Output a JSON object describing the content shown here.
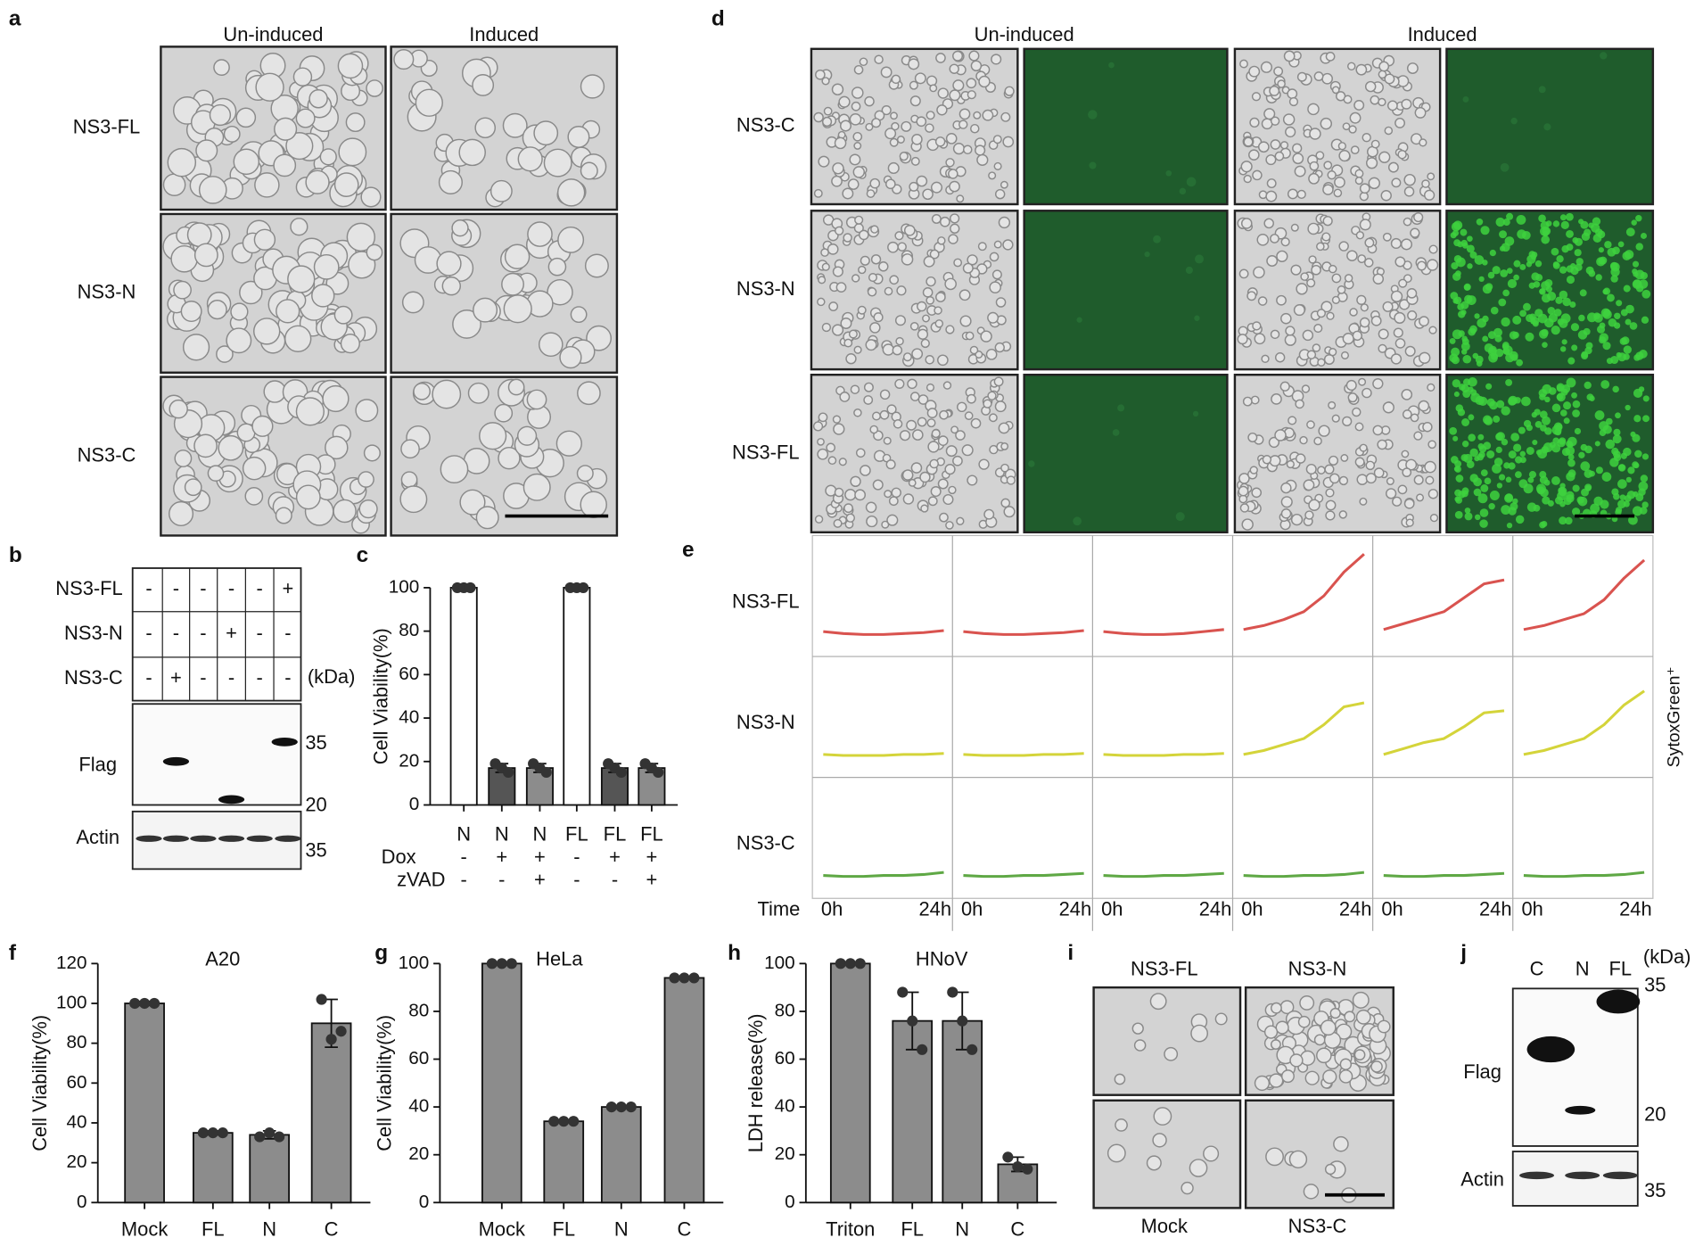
{
  "panel_labels": [
    "a",
    "b",
    "c",
    "d",
    "e",
    "f",
    "g",
    "h",
    "i",
    "j"
  ],
  "panel_a": {
    "columns": [
      "Un-induced",
      "Induced"
    ],
    "rows": [
      "NS3-FL",
      "NS3-N",
      "NS3-C"
    ]
  },
  "panel_b": {
    "rows": [
      {
        "name": "NS3-FL",
        "signs": [
          "-",
          "-",
          "-",
          "-",
          "-",
          "+"
        ]
      },
      {
        "name": "NS3-N",
        "signs": [
          "-",
          "-",
          "-",
          "+",
          "-",
          "-"
        ]
      },
      {
        "name": "NS3-C",
        "signs": [
          "-",
          "+",
          "-",
          "-",
          "-",
          "-"
        ]
      }
    ],
    "unit": "(kDa)",
    "blots": [
      "Flag",
      "Actin"
    ],
    "markers": [
      35,
      20,
      35
    ]
  },
  "panel_d": {
    "columns": [
      "Un-induced",
      "Induced"
    ],
    "rows": [
      "NS3-C",
      "NS3-N",
      "NS3-FL"
    ]
  },
  "panel_i": {
    "labels": [
      "NS3-FL",
      "NS3-N",
      "Mock",
      "NS3-C"
    ]
  },
  "panel_j": {
    "lanes": [
      "C",
      "N",
      "FL"
    ],
    "unit": "(kDa)",
    "blots": [
      "Flag",
      "Actin"
    ],
    "markers": [
      35,
      20,
      35
    ]
  },
  "chart_data": [
    {
      "type": "bar",
      "ylabel": "Cell Viability(%)",
      "categories": [
        "N",
        "N",
        "N",
        "FL",
        "FL",
        "FL"
      ],
      "values": [
        100,
        17,
        17,
        100,
        17,
        17
      ],
      "errors": [
        0,
        2,
        2,
        0,
        2,
        2
      ],
      "points": [
        [
          100,
          100,
          100
        ],
        [
          19,
          17,
          15
        ],
        [
          19,
          17,
          15
        ],
        [
          100,
          100,
          100
        ],
        [
          19,
          17,
          15
        ],
        [
          19,
          17,
          15
        ]
      ],
      "colors": [
        "#ffffff",
        "#555555",
        "#8c8c8c",
        "#ffffff",
        "#555555",
        "#8c8c8c"
      ],
      "treatments": [
        {
          "name": "Dox",
          "signs": [
            "-",
            "+",
            "+",
            "-",
            "+",
            "+"
          ]
        },
        {
          "name": "zVAD",
          "signs": [
            "-",
            "-",
            "+",
            "-",
            "-",
            "+"
          ]
        }
      ],
      "ylim": [
        0,
        100
      ],
      "yticks": [
        0,
        20,
        40,
        60,
        80,
        100
      ]
    },
    {
      "type": "line",
      "xlabel": "Time",
      "ylabel": "SytoxGreen⁺",
      "x": [
        0,
        4,
        8,
        12,
        16,
        20,
        24
      ],
      "xticks": [
        {
          "value": 0,
          "label": "0h"
        },
        {
          "value": 24,
          "label": "24h"
        }
      ],
      "ylim": [
        0,
        100
      ],
      "rows": [
        {
          "name": "NS3-FL",
          "color": "#d9534f",
          "series": [
            [
              12,
              10,
              9,
              9,
              10,
              11,
              13
            ],
            [
              12,
              10,
              9,
              9,
              10,
              11,
              13
            ],
            [
              12,
              10,
              9,
              9,
              10,
              12,
              14
            ],
            [
              14,
              18,
              24,
              32,
              48,
              72,
              90
            ],
            [
              14,
              20,
              26,
              32,
              46,
              60,
              64
            ],
            [
              14,
              18,
              24,
              30,
              44,
              66,
              84
            ]
          ]
        },
        {
          "name": "NS3-N",
          "color": "#d4d43a",
          "series": [
            [
              10,
              9,
              9,
              9,
              10,
              10,
              11
            ],
            [
              10,
              9,
              9,
              9,
              10,
              10,
              11
            ],
            [
              10,
              9,
              9,
              9,
              10,
              10,
              11
            ],
            [
              10,
              14,
              20,
              26,
              40,
              58,
              62
            ],
            [
              10,
              16,
              22,
              26,
              38,
              52,
              54
            ],
            [
              10,
              14,
              20,
              26,
              40,
              60,
              74
            ]
          ]
        },
        {
          "name": "NS3-C",
          "color": "#5fa845",
          "series": [
            [
              10,
              9,
              9,
              10,
              10,
              11,
              13
            ],
            [
              10,
              9,
              9,
              10,
              10,
              11,
              12
            ],
            [
              10,
              9,
              9,
              10,
              10,
              11,
              12
            ],
            [
              10,
              9,
              9,
              10,
              10,
              11,
              13
            ],
            [
              10,
              9,
              9,
              10,
              10,
              11,
              12
            ],
            [
              10,
              9,
              9,
              10,
              10,
              11,
              13
            ]
          ]
        }
      ]
    },
    {
      "type": "bar",
      "title": "A20",
      "ylabel": "Cell Viability(%)",
      "categories": [
        "Mock",
        "FL",
        "N",
        "C"
      ],
      "values": [
        100,
        35,
        34,
        90
      ],
      "errors": [
        1,
        1,
        2,
        12
      ],
      "points": [
        [
          100,
          100,
          100
        ],
        [
          35,
          35,
          35
        ],
        [
          33,
          35,
          33
        ],
        [
          102,
          82,
          86
        ]
      ],
      "colors": [
        "#8c8c8c",
        "#8c8c8c",
        "#8c8c8c",
        "#8c8c8c"
      ],
      "ylim": [
        0,
        120
      ],
      "yticks": [
        0,
        20,
        40,
        60,
        80,
        100,
        120
      ]
    },
    {
      "type": "bar",
      "title": "HeLa",
      "ylabel": "Cell Viability(%)",
      "categories": [
        "Mock",
        "FL",
        "N",
        "C"
      ],
      "values": [
        100,
        34,
        40,
        94
      ],
      "errors": [
        0,
        0,
        0,
        0
      ],
      "points": [
        [
          100,
          100,
          100
        ],
        [
          34,
          34,
          34
        ],
        [
          40,
          40,
          40
        ],
        [
          94,
          94,
          94
        ]
      ],
      "colors": [
        "#8c8c8c",
        "#8c8c8c",
        "#8c8c8c",
        "#8c8c8c"
      ],
      "ylim": [
        0,
        100
      ],
      "yticks": [
        0,
        20,
        40,
        60,
        80,
        100
      ]
    },
    {
      "type": "bar",
      "title": "HNoV",
      "ylabel": "LDH release(%)",
      "categories": [
        "Triton",
        "FL",
        "N",
        "C"
      ],
      "values": [
        100,
        76,
        76,
        16
      ],
      "errors": [
        0,
        12,
        12,
        3
      ],
      "points": [
        [
          100,
          100,
          100
        ],
        [
          88,
          76,
          64
        ],
        [
          88,
          76,
          64
        ],
        [
          19,
          15,
          14
        ]
      ],
      "colors": [
        "#8c8c8c",
        "#8c8c8c",
        "#8c8c8c",
        "#8c8c8c"
      ],
      "ylim": [
        0,
        100
      ],
      "yticks": [
        0,
        20,
        40,
        60,
        80,
        100
      ]
    }
  ]
}
